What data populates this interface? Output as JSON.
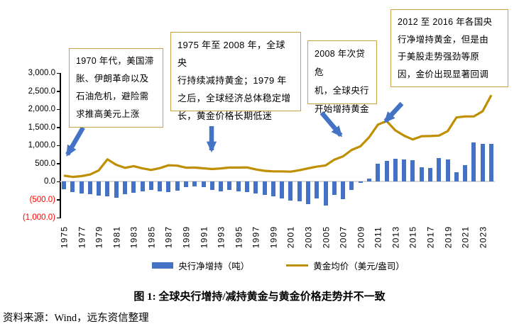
{
  "figure": {
    "caption": "图 1: 全球央行增持/减持黄金与黄金价格走势并不一致",
    "source": "资料来源：Wind，远东资信整理"
  },
  "legend": {
    "bar_label": "央行净增持（吨）",
    "line_label": "黄金均价（美元/盎司）"
  },
  "annotations": {
    "box1": {
      "text": "1970 年代，美国滞\n胀、伊朗革命以及\n石油危机，避险需\n求推高美元上涨"
    },
    "box2": {
      "text": "1975 年至 2008 年，全球央\n行持续减持黄金；1979 年\n之后，全球经济总体稳定增\n长，黄金价格长期低迷"
    },
    "box3": {
      "text": "2008 年次贷危\n机，全球央行\n开始增持黄金"
    },
    "box4": {
      "text": "2012 至 2016 年各国央\n行净增持黄金，但是由\n于美股走势强劲等原\n因，金价出现显著回调"
    }
  },
  "colors": {
    "bar": "#4472C4",
    "line": "#BF8F00",
    "arrow": "#4472C4",
    "box_border": "#C8A344",
    "negative_label": "#FF0000",
    "zero_line": "#D9D9D9",
    "axis": "#000000"
  },
  "chart_data": {
    "type": "bar+line combo",
    "x": [
      1975,
      1976,
      1977,
      1978,
      1979,
      1980,
      1981,
      1982,
      1983,
      1984,
      1985,
      1986,
      1987,
      1988,
      1989,
      1990,
      1991,
      1992,
      1993,
      1994,
      1995,
      1996,
      1997,
      1998,
      1999,
      2000,
      2001,
      2002,
      2003,
      2004,
      2005,
      2006,
      2007,
      2008,
      2009,
      2010,
      2011,
      2012,
      2013,
      2014,
      2015,
      2016,
      2017,
      2018,
      2019,
      2020,
      2021,
      2022,
      2023,
      2024
    ],
    "series": [
      {
        "name": "央行净增持（吨）",
        "type": "bar",
        "color": "#4472C4",
        "values": [
          -220,
          -300,
          -330,
          -360,
          -400,
          -410,
          -450,
          -360,
          -320,
          -265,
          -230,
          -265,
          -300,
          -250,
          -165,
          -130,
          -165,
          -230,
          -280,
          -230,
          -265,
          -300,
          -340,
          -365,
          -410,
          -465,
          -520,
          -545,
          -620,
          -480,
          -660,
          -365,
          -485,
          -235,
          -35,
          79,
          481,
          569,
          629,
          601,
          580,
          395,
          378,
          656,
          605,
          255,
          450,
          1082,
          1037,
          1045
        ]
      },
      {
        "name": "黄金均价（美元/盎司）",
        "type": "line",
        "color": "#BF8F00",
        "values": [
          161,
          125,
          148,
          193,
          306,
          612,
          460,
          376,
          424,
          361,
          317,
          368,
          447,
          437,
          381,
          384,
          362,
          344,
          360,
          384,
          384,
          388,
          331,
          294,
          279,
          279,
          271,
          310,
          363,
          409,
          444,
          603,
          695,
          872,
          972,
          1225,
          1572,
          1669,
          1411,
          1266,
          1160,
          1251,
          1257,
          1268,
          1393,
          1770,
          1799,
          1800,
          1941,
          2386
        ]
      }
    ],
    "ylim": [
      -1000,
      3000
    ],
    "y_ticks": [
      {
        "label": "3,000.0",
        "value": 3000,
        "negative": false
      },
      {
        "label": "2,500.0",
        "value": 2500,
        "negative": false
      },
      {
        "label": "2,000.0",
        "value": 2000,
        "negative": false
      },
      {
        "label": "1,500.0",
        "value": 1500,
        "negative": false
      },
      {
        "label": "1,000.0",
        "value": 1000,
        "negative": false
      },
      {
        "label": "500.0",
        "value": 500,
        "negative": false
      },
      {
        "label": "0.0",
        "value": 0,
        "negative": false
      },
      {
        "label": "(500.0)",
        "value": -500,
        "negative": true
      },
      {
        "label": "(1,000.0)",
        "value": -1000,
        "negative": true
      }
    ],
    "x_tick_labels": [
      "1975",
      "1977",
      "1979",
      "1981",
      "1983",
      "1985",
      "1987",
      "1989",
      "1991",
      "1993",
      "1995",
      "1997",
      "1999",
      "2001",
      "2003",
      "2005",
      "2007",
      "2009",
      "2011",
      "2013",
      "2015",
      "2017",
      "2019",
      "2021",
      "2023"
    ],
    "x_label_step": 2,
    "grid": "zero line only",
    "legend_position": "bottom"
  }
}
